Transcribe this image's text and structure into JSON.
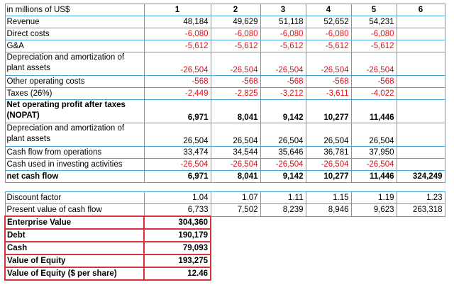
{
  "sheet": {
    "header": {
      "label": "in millions of US$",
      "years": [
        "1",
        "2",
        "3",
        "4",
        "5",
        "6"
      ]
    },
    "rows": [
      {
        "label": "Revenue",
        "values": [
          "48,184",
          "49,629",
          "51,118",
          "52,652",
          "54,231",
          ""
        ]
      },
      {
        "label": "Direct costs",
        "values": [
          "-6,080",
          "-6,080",
          "-6,080",
          "-6,080",
          "-6,080",
          ""
        ]
      },
      {
        "label": "G&A",
        "values": [
          "-5,612",
          "-5,612",
          "-5,612",
          "-5,612",
          "-5,612",
          ""
        ]
      },
      {
        "label": "Depreciation and amortization of plant assets",
        "values": [
          "-26,504",
          "-26,504",
          "-26,504",
          "-26,504",
          "-26,504",
          ""
        ]
      },
      {
        "label": "Other operating costs",
        "values": [
          "-568",
          "-568",
          "-568",
          "-568",
          "-568",
          ""
        ]
      },
      {
        "label": "Taxes (26%)",
        "values": [
          "-2,449",
          "-2,825",
          "-3,212",
          "-3,611",
          "-4,022",
          ""
        ]
      },
      {
        "label": "Net operating profit after taxes (NOPAT)",
        "values": [
          "6,971",
          "8,041",
          "9,142",
          "10,277",
          "11,446",
          ""
        ]
      },
      {
        "label": "Depreciation and amortization of plant assets",
        "values": [
          "26,504",
          "26,504",
          "26,504",
          "26,504",
          "26,504",
          ""
        ]
      },
      {
        "label": "Cash flow from operations",
        "values": [
          "33,474",
          "34,544",
          "35,646",
          "36,781",
          "37,950",
          ""
        ]
      },
      {
        "label": "Cash used in investing activities",
        "values": [
          "-26,504",
          "-26,504",
          "-26,504",
          "-26,504",
          "-26,504",
          ""
        ]
      },
      {
        "label": "net cash flow",
        "values": [
          "6,971",
          "8,041",
          "9,142",
          "10,277",
          "11,446",
          "324,249"
        ]
      }
    ],
    "discount": [
      {
        "label": "Discount factor",
        "values": [
          "1.04",
          "1.07",
          "1.11",
          "1.15",
          "1.19",
          "1.23"
        ]
      },
      {
        "label": "Present value of cash flow",
        "values": [
          "6,733",
          "7,502",
          "8,239",
          "8,946",
          "9,623",
          "263,318"
        ]
      }
    ],
    "valuation": [
      {
        "label": "Enterprise Value",
        "value": "304,360"
      },
      {
        "label": "Debt",
        "value": "190,179"
      },
      {
        "label": "Cash",
        "value": "79,093"
      },
      {
        "label": "Value of Equity",
        "value": "193,275"
      },
      {
        "label": "Value of Equity ($ per share)",
        "value": "12.46"
      }
    ]
  },
  "colors": {
    "grid": "#49a6d8",
    "negative": "#e0101a",
    "valuation_border": "#d8323a"
  }
}
